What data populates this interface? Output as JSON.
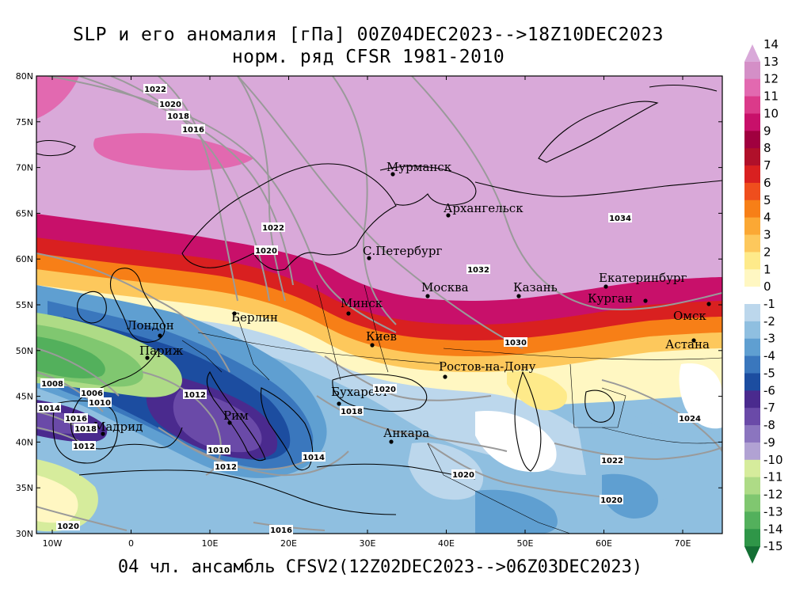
{
  "title": {
    "line1": "SLP и его аномалия [гПа] 00Z04DEC2023-->18Z10DEC2023",
    "line2": "норм. ряд CFSR 1981-2010"
  },
  "footer": "04 чл. ансамбль CFSV2(12Z02DEC2023-->06Z03DEC2023)",
  "axes": {
    "lat_labels": [
      "80N",
      "75N",
      "70N",
      "65N",
      "60N",
      "55N",
      "50N",
      "45N",
      "40N",
      "35N",
      "30N"
    ],
    "lon_labels": [
      "10W",
      "0",
      "10E",
      "20E",
      "30E",
      "40E",
      "50E",
      "60E",
      "70E"
    ]
  },
  "colorbar": {
    "labels": [
      "14",
      "13",
      "12",
      "11",
      "10",
      "9",
      "8",
      "7",
      "6",
      "5",
      "4",
      "3",
      "2",
      "1",
      "0",
      "-1",
      "-2",
      "-3",
      "-4",
      "-5",
      "-6",
      "-7",
      "-8",
      "-9",
      "-10",
      "-11",
      "-12",
      "-13",
      "-14",
      "-15"
    ],
    "colors": [
      "#d9a9d9",
      "#d48fc7",
      "#e269b0",
      "#db3a8a",
      "#c8106a",
      "#a0003f",
      "#b0102a",
      "#d92020",
      "#ef4e1d",
      "#f77f17",
      "#fba834",
      "#fdc85c",
      "#feea8a",
      "#fff7c2",
      "#ffffff",
      "#bcd7ec",
      "#8fbfe0",
      "#5f9fd1",
      "#3a77bd",
      "#1c4da0",
      "#4a2a8e",
      "#6a4aa8",
      "#8b75bf",
      "#b1a2d3",
      "#d6ec9c",
      "#aedb86",
      "#80c770",
      "#53b05c",
      "#2f9648",
      "#146f34"
    ]
  },
  "cities": [
    {
      "name": "Мурманск"
    },
    {
      "name": "Архангельск"
    },
    {
      "name": "С.Петербург"
    },
    {
      "name": "Москва"
    },
    {
      "name": "Казань"
    },
    {
      "name": "Екатеринбург"
    },
    {
      "name": "Курган"
    },
    {
      "name": "Омск"
    },
    {
      "name": "Астана"
    },
    {
      "name": "Минск"
    },
    {
      "name": "Киев"
    },
    {
      "name": "Берлин"
    },
    {
      "name": "Лондон"
    },
    {
      "name": "Париж"
    },
    {
      "name": "Ростов-на-Дону"
    },
    {
      "name": "Бухарест"
    },
    {
      "name": "Рим"
    },
    {
      "name": "Анкара"
    },
    {
      "name": "Мадрид"
    }
  ],
  "isobar_labels": [
    "1022",
    "1020",
    "1018",
    "1016",
    "1022",
    "1020",
    "1032",
    "1034",
    "1030",
    "1008",
    "1006",
    "1010",
    "1012",
    "1014",
    "1016",
    "1018",
    "1012",
    "1010",
    "1012",
    "1020",
    "1018",
    "1014",
    "1020",
    "1022",
    "1024",
    "1020",
    "1020",
    "1016"
  ]
}
